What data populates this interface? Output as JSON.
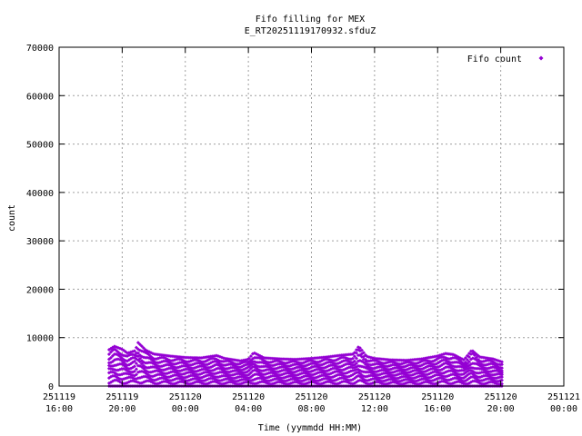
{
  "chart_data": {
    "type": "scatter",
    "title": "Fifo filling for MEX",
    "subtitle": "E_RT20251119170932.sfduZ",
    "xlabel": "Time (yymmdd HH:MM)",
    "ylabel": "count",
    "xlim": [
      "2025-11-19 16:00",
      "2025-11-21 00:00"
    ],
    "ylim": [
      0,
      70000
    ],
    "grid": true,
    "legend_position": "top-right",
    "x_ticks": [
      {
        "date": "251119",
        "time": "16:00"
      },
      {
        "date": "251119",
        "time": "20:00"
      },
      {
        "date": "251120",
        "time": "00:00"
      },
      {
        "date": "251120",
        "time": "04:00"
      },
      {
        "date": "251120",
        "time": "08:00"
      },
      {
        "date": "251120",
        "time": "12:00"
      },
      {
        "date": "251120",
        "time": "16:00"
      },
      {
        "date": "251120",
        "time": "20:00"
      },
      {
        "date": "251121",
        "time": "00:00"
      }
    ],
    "y_ticks": [
      "0",
      "10000",
      "20000",
      "30000",
      "40000",
      "50000",
      "60000",
      "70000"
    ],
    "series": [
      {
        "name": "Fifo count",
        "color": "#9400d3",
        "marker": "diamond",
        "x_range": [
          "2025-11-19 19:10",
          "2025-11-20 20:10"
        ],
        "y_range": [
          0,
          9000
        ],
        "upper_envelope": [
          {
            "t": "2025-11-19 19:10",
            "count": 7500
          },
          {
            "t": "2025-11-19 19:30",
            "count": 8200
          },
          {
            "t": "2025-11-19 20:00",
            "count": 7600
          },
          {
            "t": "2025-11-19 20:20",
            "count": 6800
          },
          {
            "t": "2025-11-19 20:50",
            "count": 7300
          },
          {
            "t": "2025-11-19 21:00",
            "count": 9000
          },
          {
            "t": "2025-11-19 21:30",
            "count": 7400
          },
          {
            "t": "2025-11-19 22:00",
            "count": 6600
          },
          {
            "t": "2025-11-19 23:00",
            "count": 6200
          },
          {
            "t": "2025-11-20 00:00",
            "count": 5900
          },
          {
            "t": "2025-11-20 01:00",
            "count": 5800
          },
          {
            "t": "2025-11-20 02:00",
            "count": 6300
          },
          {
            "t": "2025-11-20 02:30",
            "count": 5700
          },
          {
            "t": "2025-11-20 03:30",
            "count": 5200
          },
          {
            "t": "2025-11-20 04:00",
            "count": 5500
          },
          {
            "t": "2025-11-20 04:20",
            "count": 6900
          },
          {
            "t": "2025-11-20 05:00",
            "count": 5800
          },
          {
            "t": "2025-11-20 06:00",
            "count": 5600
          },
          {
            "t": "2025-11-20 07:00",
            "count": 5500
          },
          {
            "t": "2025-11-20 08:00",
            "count": 5700
          },
          {
            "t": "2025-11-20 09:00",
            "count": 6000
          },
          {
            "t": "2025-11-20 10:00",
            "count": 6400
          },
          {
            "t": "2025-11-20 10:40",
            "count": 6600
          },
          {
            "t": "2025-11-20 11:00",
            "count": 8200
          },
          {
            "t": "2025-11-20 11:30",
            "count": 6100
          },
          {
            "t": "2025-11-20 12:00",
            "count": 5700
          },
          {
            "t": "2025-11-20 13:00",
            "count": 5400
          },
          {
            "t": "2025-11-20 14:00",
            "count": 5300
          },
          {
            "t": "2025-11-20 15:00",
            "count": 5600
          },
          {
            "t": "2025-11-20 16:00",
            "count": 6200
          },
          {
            "t": "2025-11-20 16:30",
            "count": 6700
          },
          {
            "t": "2025-11-20 17:00",
            "count": 6500
          },
          {
            "t": "2025-11-20 17:40",
            "count": 5400
          },
          {
            "t": "2025-11-20 18:10",
            "count": 7400
          },
          {
            "t": "2025-11-20 18:40",
            "count": 6000
          },
          {
            "t": "2025-11-20 19:30",
            "count": 5600
          },
          {
            "t": "2025-11-20 20:10",
            "count": 4900
          }
        ]
      }
    ]
  }
}
